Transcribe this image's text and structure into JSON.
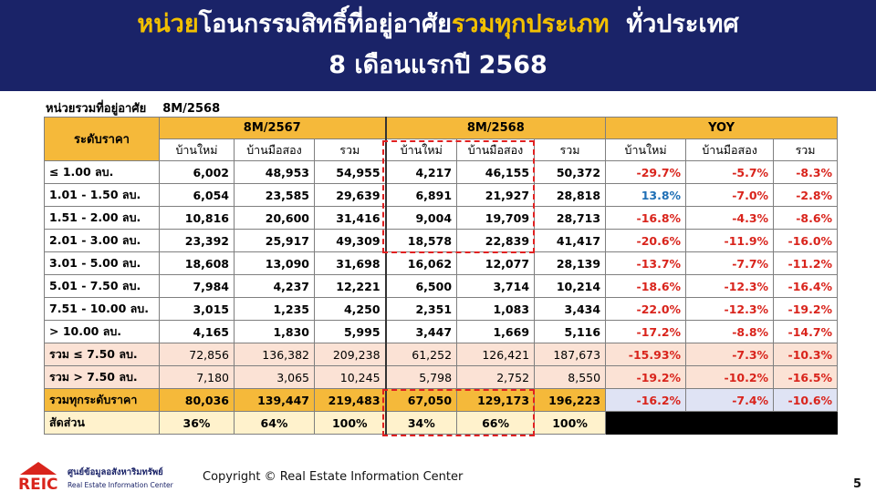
{
  "header": {
    "title_part1": "หน่วย",
    "title_part2": "โอนกรรมสิทธิ์ที่อยู่อาศัย",
    "title_part3": "รวมทุกประเภท",
    "title_part4": "ทั่วประเทศ",
    "title_line2": "8 เดือนแรกปี 2568"
  },
  "table_caption": {
    "label": "หน่วยรวมที่อยู่อาศัย",
    "period": "8M/2568"
  },
  "table": {
    "stub_header": "ระดับราคา",
    "groups": [
      "8M/2567",
      "8M/2568",
      "YOY"
    ],
    "subheaders": [
      "บ้านใหม่",
      "บ้านมือสอง",
      "รวม",
      "บ้านใหม่",
      "บ้านมือสอง",
      "รวม",
      "บ้านใหม่",
      "บ้านมือสอง",
      "รวม"
    ],
    "rows": [
      {
        "label": "≤ 1.00 ลบ.",
        "values": [
          "6,002",
          "48,953",
          "54,955",
          "4,217",
          "46,155",
          "50,372",
          "-29.7%",
          "-5.7%",
          "-8.3%"
        ]
      },
      {
        "label": "1.01 - 1.50 ลบ.",
        "values": [
          "6,054",
          "23,585",
          "29,639",
          "6,891",
          "21,927",
          "28,818",
          "13.8%",
          "-7.0%",
          "-2.8%"
        ]
      },
      {
        "label": "1.51 - 2.00 ลบ.",
        "values": [
          "10,816",
          "20,600",
          "31,416",
          "9,004",
          "19,709",
          "28,713",
          "-16.8%",
          "-4.3%",
          "-8.6%"
        ]
      },
      {
        "label": "2.01 - 3.00 ลบ.",
        "values": [
          "23,392",
          "25,917",
          "49,309",
          "18,578",
          "22,839",
          "41,417",
          "-20.6%",
          "-11.9%",
          "-16.0%"
        ]
      },
      {
        "label": "3.01 - 5.00 ลบ.",
        "values": [
          "18,608",
          "13,090",
          "31,698",
          "16,062",
          "12,077",
          "28,139",
          "-13.7%",
          "-7.7%",
          "-11.2%"
        ]
      },
      {
        "label": "5.01 - 7.50 ลบ.",
        "values": [
          "7,984",
          "4,237",
          "12,221",
          "6,500",
          "3,714",
          "10,214",
          "-18.6%",
          "-12.3%",
          "-16.4%"
        ]
      },
      {
        "label": "7.51 - 10.00 ลบ.",
        "values": [
          "3,015",
          "1,235",
          "4,250",
          "2,351",
          "1,083",
          "3,434",
          "-22.0%",
          "-12.3%",
          "-19.2%"
        ]
      },
      {
        "label": "> 10.00 ลบ.",
        "values": [
          "4,165",
          "1,830",
          "5,995",
          "3,447",
          "1,669",
          "5,116",
          "-17.2%",
          "-8.8%",
          "-14.7%"
        ]
      }
    ],
    "sum_rows": [
      {
        "label": "รวม ≤ 7.50 ลบ.",
        "values": [
          "72,856",
          "136,382",
          "209,238",
          "61,252",
          "126,421",
          "187,673",
          "-15.93%",
          "-7.3%",
          "-10.3%"
        ]
      },
      {
        "label": "รวม > 7.50 ลบ.",
        "values": [
          "7,180",
          "3,065",
          "10,245",
          "5,798",
          "2,752",
          "8,550",
          "-19.2%",
          "-10.2%",
          "-16.5%"
        ]
      }
    ],
    "total_row": {
      "label": "รวมทุกระดับราคา",
      "values": [
        "80,036",
        "139,447",
        "219,483",
        "67,050",
        "129,173",
        "196,223",
        "-16.2%",
        "-7.4%",
        "-10.6%"
      ]
    },
    "share_row": {
      "label": "สัดส่วน",
      "values": [
        "36%",
        "64%",
        "100%",
        "34%",
        "66%",
        "100%"
      ]
    }
  },
  "footer": {
    "logo_text": "REIC",
    "logo_thai": "ศูนย์ข้อมูลอสังหาริมทรัพย์",
    "logo_en": "Real Estate Information Center",
    "copyright": "Copyright © Real Estate Information Center",
    "page_number": "5"
  },
  "colors": {
    "header_bg": "#1a2368",
    "header_highlight": "#f2c000",
    "table_header": "#f5b93a",
    "negative": "#d9241c",
    "positive": "#1f6fb5",
    "highlight_box": "#e02020"
  }
}
